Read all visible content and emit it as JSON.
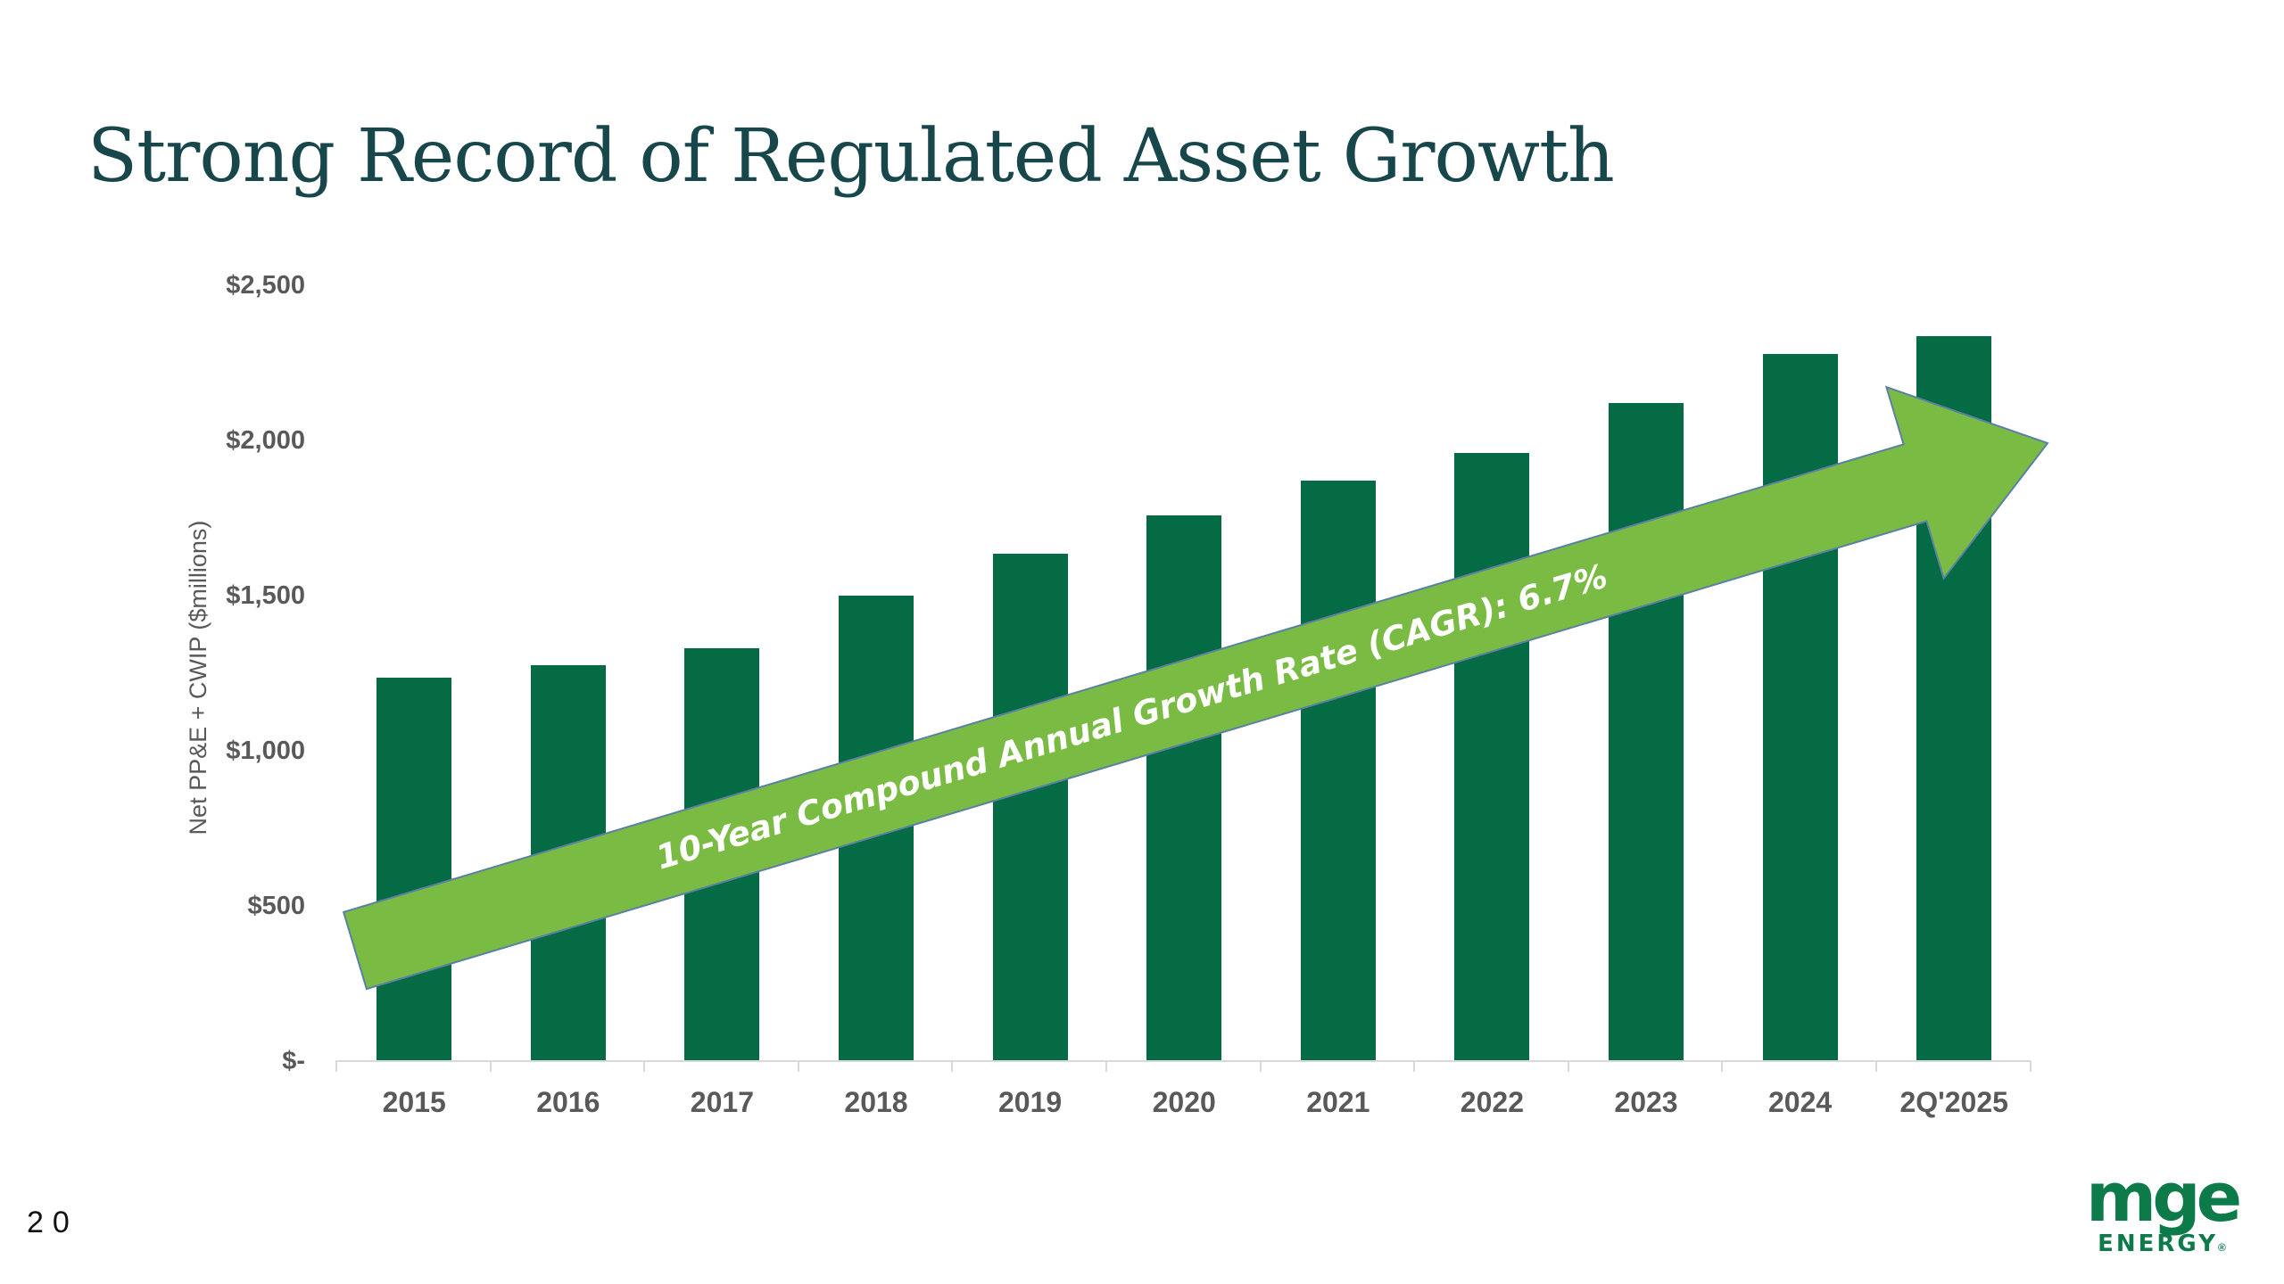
{
  "slide": {
    "title": "Strong Record of Regulated Asset Growth",
    "page_number": "20",
    "logo": {
      "primary": "mge",
      "secondary": "ENERGY",
      "registered": "®",
      "color": "#0D7A4A"
    }
  },
  "chart_data": {
    "type": "bar",
    "title": "",
    "xlabel": "",
    "ylabel": "Net PP&E + CWIP ($millions)",
    "categories": [
      "2015",
      "2016",
      "2017",
      "2018",
      "2019",
      "2020",
      "2021",
      "2022",
      "2023",
      "2024",
      "2Q'2025"
    ],
    "values": [
      1235,
      1275,
      1330,
      1500,
      1635,
      1760,
      1870,
      1960,
      2120,
      2280,
      2335
    ],
    "ylim": [
      0,
      2500
    ],
    "y_ticks": [
      {
        "label": "$2,500",
        "value": 2500
      },
      {
        "label": "$2,000",
        "value": 2000
      },
      {
        "label": "$1,500",
        "value": 1500
      },
      {
        "label": "$1,000",
        "value": 1000
      },
      {
        "label": "$500",
        "value": 500
      },
      {
        "label": "$-",
        "value": 0
      }
    ],
    "grid": false,
    "legend": false,
    "bar_color": "#056B45",
    "axis_color": "#D9D9D9",
    "tick_label_color": "#595959",
    "annotation": {
      "text": "10-Year Compound Annual Growth Rate (CAGR): 6.7%",
      "arrow_color": "#7ABC43",
      "arrow_outline": "#5B80A5",
      "text_color": "#FFFFFF"
    }
  }
}
